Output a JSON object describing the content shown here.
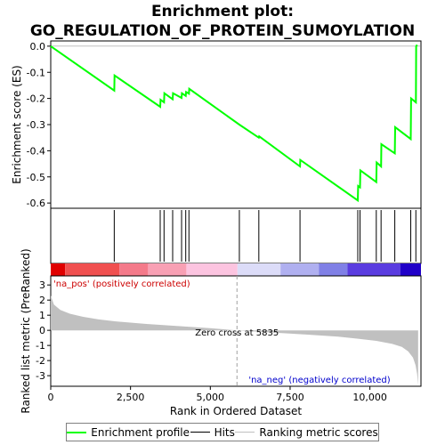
{
  "chart_data": {
    "type": "line",
    "title": "Enrichment plot: GO_REGULATION_OF_PROTEIN_SUMOYLATION",
    "xlabel": "Rank in Ordered Dataset",
    "xlim": [
      0,
      11600
    ],
    "x_ticks": [
      0,
      2500,
      5000,
      7500,
      10000
    ],
    "x_tick_labels": [
      "0",
      "2,500",
      "5,000",
      "7,500",
      "10,000"
    ],
    "es_panel": {
      "ylabel": "Enrichment score (ES)",
      "ylim": [
        -0.62,
        0.02
      ],
      "y_ticks": [
        0.0,
        -0.1,
        -0.2,
        -0.3,
        -0.4,
        -0.5,
        -0.6
      ],
      "y_tick_labels": [
        "0.0",
        "-0.1",
        "-0.2",
        "-0.3",
        "-0.4",
        "-0.5",
        "-0.6"
      ],
      "series_color": "#00ff00",
      "points": [
        [
          0,
          0.0
        ],
        [
          1990,
          -0.17
        ],
        [
          2000,
          -0.112
        ],
        [
          3430,
          -0.232
        ],
        [
          3440,
          -0.205
        ],
        [
          3550,
          -0.215
        ],
        [
          3560,
          -0.18
        ],
        [
          3820,
          -0.203
        ],
        [
          3830,
          -0.18
        ],
        [
          4100,
          -0.198
        ],
        [
          4110,
          -0.18
        ],
        [
          4230,
          -0.19
        ],
        [
          4240,
          -0.175
        ],
        [
          4330,
          -0.182
        ],
        [
          4340,
          -0.163
        ],
        [
          5910,
          -0.3
        ],
        [
          6520,
          -0.35
        ],
        [
          6530,
          -0.345
        ],
        [
          7810,
          -0.46
        ],
        [
          7820,
          -0.435
        ],
        [
          9620,
          -0.59
        ],
        [
          9630,
          -0.535
        ],
        [
          9690,
          -0.54
        ],
        [
          9700,
          -0.475
        ],
        [
          10200,
          -0.52
        ],
        [
          10210,
          -0.445
        ],
        [
          10350,
          -0.46
        ],
        [
          10360,
          -0.375
        ],
        [
          10780,
          -0.41
        ],
        [
          10790,
          -0.31
        ],
        [
          11280,
          -0.355
        ],
        [
          11290,
          -0.2
        ],
        [
          11440,
          -0.215
        ],
        [
          11450,
          0.0
        ],
        [
          11480,
          0.005
        ]
      ]
    },
    "hits": [
      1990,
      3430,
      3550,
      3820,
      4100,
      4230,
      4330,
      5910,
      6520,
      7810,
      9620,
      9690,
      10200,
      10350,
      10780,
      11280,
      11440
    ],
    "rank_panel": {
      "ylabel": "Ranked list metric (PreRanked)",
      "ylim": [
        -3.7,
        3.6
      ],
      "y_ticks": [
        3,
        2,
        1,
        0,
        -1,
        -2,
        -3
      ],
      "y_tick_labels": [
        "3",
        "2",
        "1",
        "0",
        "-1",
        "-2",
        "-3"
      ],
      "fill_color": "#c0c0c0",
      "profile": [
        [
          0,
          2.3
        ],
        [
          100,
          1.7
        ],
        [
          300,
          1.35
        ],
        [
          600,
          1.1
        ],
        [
          1000,
          0.9
        ],
        [
          1500,
          0.72
        ],
        [
          2000,
          0.6
        ],
        [
          3000,
          0.42
        ],
        [
          4000,
          0.28
        ],
        [
          5000,
          0.14
        ],
        [
          5835,
          0.0
        ],
        [
          7000,
          -0.15
        ],
        [
          8000,
          -0.28
        ],
        [
          9000,
          -0.42
        ],
        [
          9600,
          -0.55
        ],
        [
          10200,
          -0.7
        ],
        [
          10700,
          -0.9
        ],
        [
          11000,
          -1.1
        ],
        [
          11200,
          -1.4
        ],
        [
          11350,
          -1.8
        ],
        [
          11430,
          -2.3
        ],
        [
          11480,
          -2.9
        ],
        [
          11510,
          -3.6
        ]
      ],
      "zero_cross_label": "Zero cross at 5835",
      "zero_cross": 5835,
      "pos_label": "'na_pos' (positively correlated)",
      "neg_label": "'na_neg' (negatively correlated)",
      "pos_label_color": "#cc0000",
      "neg_label_color": "#0000cc"
    },
    "colorbar_segments": [
      {
        "start": 0,
        "end": 450,
        "color": "#e00000"
      },
      {
        "start": 450,
        "end": 2150,
        "color": "#f05050"
      },
      {
        "start": 2150,
        "end": 3050,
        "color": "#f47a8a"
      },
      {
        "start": 3050,
        "end": 4250,
        "color": "#f8a0b4"
      },
      {
        "start": 4250,
        "end": 5850,
        "color": "#fcc4e0"
      },
      {
        "start": 5850,
        "end": 7200,
        "color": "#dcdcf8"
      },
      {
        "start": 7200,
        "end": 8400,
        "color": "#b0b0f0"
      },
      {
        "start": 8400,
        "end": 9300,
        "color": "#8080e6"
      },
      {
        "start": 9300,
        "end": 10950,
        "color": "#5a3ce0"
      },
      {
        "start": 10950,
        "end": 11600,
        "color": "#2000c8"
      }
    ],
    "legend": [
      {
        "label": "Enrichment profile",
        "color": "#00ff00",
        "kind": "line"
      },
      {
        "label": "Hits",
        "color": "#000000",
        "kind": "line"
      },
      {
        "label": "Ranking metric scores",
        "color": "#c0c0c0",
        "kind": "line"
      }
    ]
  }
}
